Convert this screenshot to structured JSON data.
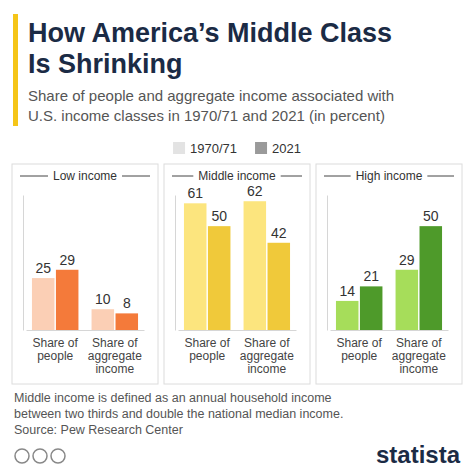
{
  "title": [
    "How America’s Middle Class",
    "Is Shrinking"
  ],
  "subtitle": [
    "Share of people and aggregate income associated with",
    "U.S. income classes in 1970/71 and 2021 (in percent)"
  ],
  "chart_data": [
    {
      "type": "bar",
      "title": "Low income",
      "categories": [
        "Share of people",
        "Share of aggregate income"
      ],
      "series": [
        {
          "name": "1970/71",
          "color": "#fbcfb5",
          "values": [
            25,
            10
          ]
        },
        {
          "name": "2021",
          "color": "#f47a3a",
          "values": [
            29,
            8
          ]
        }
      ],
      "ylim": [
        0,
        65
      ],
      "tick_labels": "x",
      "data_labels": true,
      "legend": "top"
    },
    {
      "type": "bar",
      "title": "Middle income",
      "categories": [
        "Share of people",
        "Share of aggregate income"
      ],
      "series": [
        {
          "name": "1970/71",
          "color": "#fce57e",
          "values": [
            61,
            62
          ]
        },
        {
          "name": "2021",
          "color": "#f0c93a",
          "values": [
            50,
            42
          ]
        }
      ],
      "ylim": [
        0,
        65
      ],
      "tick_labels": "x",
      "data_labels": true
    },
    {
      "type": "bar",
      "title": "High income",
      "categories": [
        "Share of people",
        "Share of aggregate income"
      ],
      "series": [
        {
          "name": "1970/71",
          "color": "#a6dd5a",
          "values": [
            14,
            29
          ]
        },
        {
          "name": "2021",
          "color": "#4e9a2a",
          "values": [
            21,
            50
          ]
        }
      ],
      "ylim": [
        0,
        65
      ],
      "tick_labels": "x",
      "data_labels": true
    }
  ],
  "note": [
    "Middle income is defined as an annual household income",
    "between two thirds and double the national median income."
  ],
  "source": "Source: Pew Research Center",
  "logo": "statista"
}
